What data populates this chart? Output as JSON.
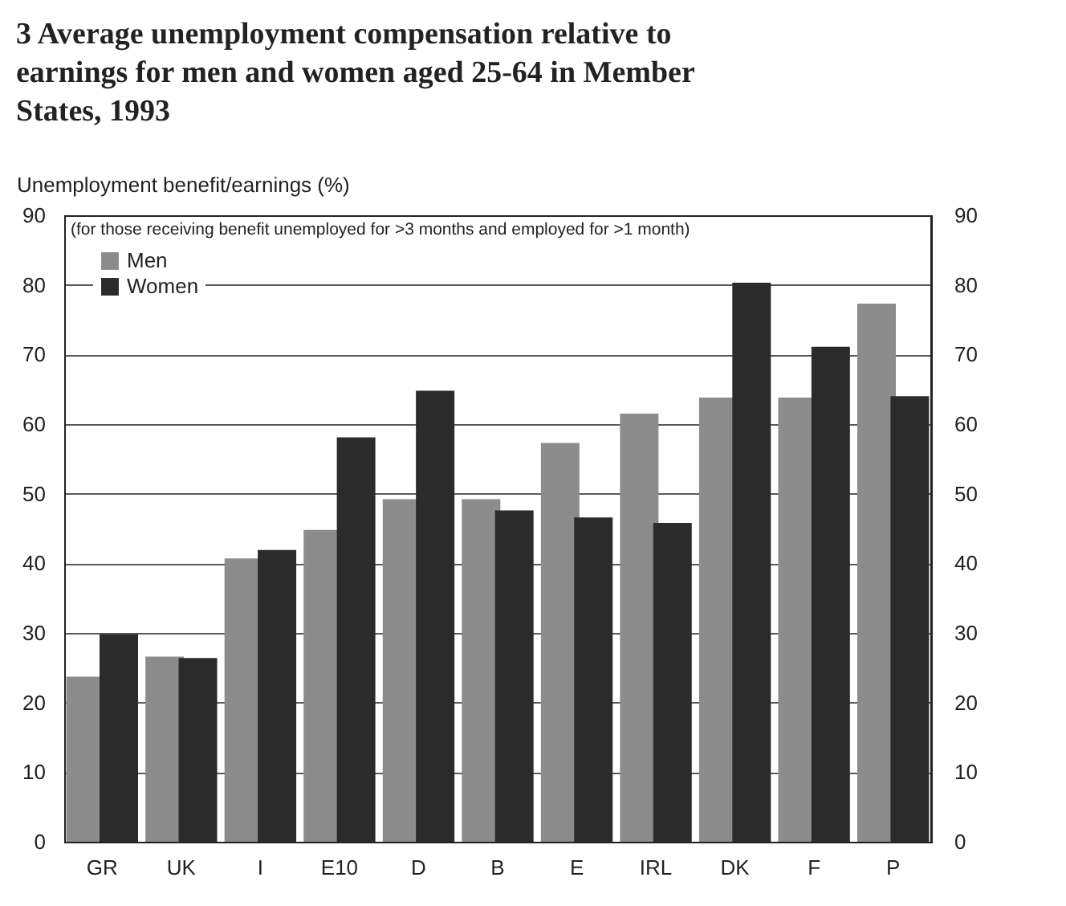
{
  "chart_data": {
    "type": "bar",
    "title": "3 Average unemployment compensation relative to earnings for men and women aged 25-64 in Member States, 1993",
    "ylabel": "Unemployment benefit/earnings (%)",
    "annotations": [
      "(for those receiving benefit unemployed for >3 months and employed for >1 month)"
    ],
    "categories": [
      "GR",
      "UK",
      "I",
      "E10",
      "D",
      "B",
      "E",
      "IRL",
      "DK",
      "F",
      "P"
    ],
    "series": [
      {
        "name": "Men",
        "color": "#8c8c8c",
        "values": [
          23.7,
          26.6,
          40.7,
          44.8,
          49.2,
          49.2,
          57.3,
          61.5,
          63.8,
          63.8,
          77.3
        ]
      },
      {
        "name": "Women",
        "color": "#2b2b2b",
        "values": [
          29.8,
          26.4,
          41.9,
          58.1,
          64.8,
          47.6,
          46.6,
          45.8,
          80.3,
          71.1,
          64.0
        ]
      }
    ],
    "ylim": [
      0,
      90
    ],
    "yticks": [
      0,
      10,
      20,
      30,
      40,
      50,
      60,
      70,
      80,
      90
    ],
    "y2lim": [
      0,
      90
    ],
    "y2ticks": [
      0,
      10,
      20,
      30,
      40,
      50,
      60,
      70,
      80,
      90
    ],
    "grid": "y",
    "legend": "top left"
  }
}
